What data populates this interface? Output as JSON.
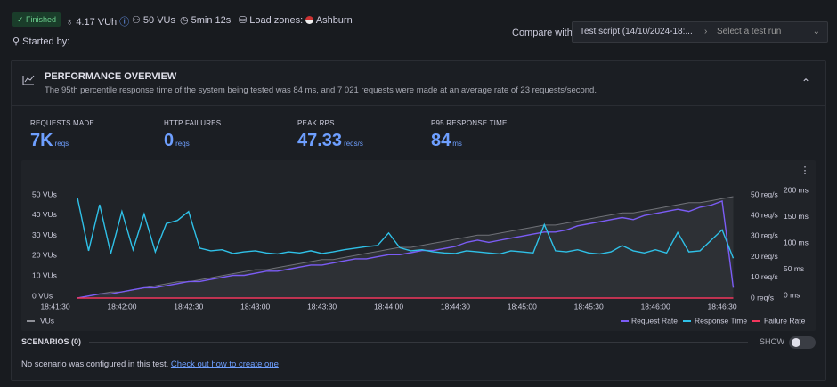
{
  "header": {
    "status": "Finished",
    "vuh": "4.17 VUh",
    "vus": "50 VUs",
    "duration": "5min 12s",
    "load_zones": "Load zones:",
    "zone": "Ashburn",
    "started_by": "Started by:",
    "compare_label": "Compare with",
    "compare_script": "Test script (14/10/2024-18:...",
    "compare_run": "Select a test run"
  },
  "overview": {
    "title": "PERFORMANCE OVERVIEW",
    "description": "The 95th percentile response time of the system being tested was 84 ms, and 7 021 requests were made at an average rate of 23 requests/second."
  },
  "metrics": [
    {
      "label": "REQUESTS MADE",
      "value": "7K",
      "unit": "reqs"
    },
    {
      "label": "HTTP FAILURES",
      "value": "0",
      "unit": "reqs"
    },
    {
      "label": "PEAK RPS",
      "value": "47.33",
      "unit": "reqs/s"
    },
    {
      "label": "P95 RESPONSE TIME",
      "value": "84",
      "unit": "ms"
    }
  ],
  "chart_data": {
    "type": "line",
    "x": [
      67300,
      67305,
      67310,
      67315,
      67320,
      67325,
      67330,
      67335,
      67340,
      67345,
      67350,
      67355,
      67360,
      67365,
      67370,
      67375,
      67380,
      67385,
      67390,
      67395,
      67400,
      67405,
      67410,
      67415,
      67420,
      67425,
      67430,
      67435,
      67440,
      67445,
      67450,
      67455,
      67460,
      67465,
      67470,
      67475,
      67480,
      67485,
      67490,
      67495,
      67500,
      67505,
      67510,
      67515,
      67520,
      67525,
      67530,
      67535,
      67540,
      67545,
      67550,
      67555,
      67560,
      67565,
      67570,
      67575,
      67580,
      67585,
      67590,
      67595
    ],
    "xlim": [
      67290,
      67600
    ],
    "xticks": [
      {
        "value": 67290,
        "label": "18:41:30"
      },
      {
        "value": 67320,
        "label": "18:42:00"
      },
      {
        "value": 67350,
        "label": "18:42:30"
      },
      {
        "value": 67380,
        "label": "18:43:00"
      },
      {
        "value": 67410,
        "label": "18:43:30"
      },
      {
        "value": 67440,
        "label": "18:44:00"
      },
      {
        "value": 67470,
        "label": "18:44:30"
      },
      {
        "value": 67500,
        "label": "18:45:00"
      },
      {
        "value": 67530,
        "label": "18:45:30"
      },
      {
        "value": 67560,
        "label": "18:46:00"
      },
      {
        "value": 67590,
        "label": "18:46:30"
      }
    ],
    "ylim": [
      0,
      50
    ],
    "yticks": [
      {
        "value": 0,
        "label": "0 VUs"
      },
      {
        "value": 10,
        "label": "10 VUs"
      },
      {
        "value": 20,
        "label": "20 VUs"
      },
      {
        "value": 30,
        "label": "30 VUs"
      },
      {
        "value": 40,
        "label": "40 VUs"
      },
      {
        "value": 50,
        "label": "50 VUs"
      }
    ],
    "y2lim": [
      0,
      50
    ],
    "y2ticks": [
      {
        "value": 0,
        "label": "0 req/s"
      },
      {
        "value": 10,
        "label": "10 req/s"
      },
      {
        "value": 20,
        "label": "20 req/s"
      },
      {
        "value": 30,
        "label": "30 req/s"
      },
      {
        "value": 40,
        "label": "40 req/s"
      },
      {
        "value": 50,
        "label": "50 req/s"
      }
    ],
    "y3lim": [
      0,
      200
    ],
    "y3ticks": [
      {
        "value": 0,
        "label": "0 ms"
      },
      {
        "value": 50,
        "label": "50 ms"
      },
      {
        "value": 100,
        "label": "100 ms"
      },
      {
        "value": 150,
        "label": "150 ms"
      },
      {
        "value": 200,
        "label": "200 ms"
      }
    ],
    "series": [
      {
        "name": "VUs",
        "color": "#8e9097",
        "values": [
          0,
          1,
          2,
          3,
          3,
          4,
          5,
          6,
          7,
          8,
          8,
          9,
          10,
          11,
          12,
          13,
          14,
          14,
          15,
          16,
          17,
          18,
          19,
          19,
          20,
          21,
          22,
          23,
          24,
          25,
          25,
          26,
          27,
          28,
          29,
          30,
          31,
          31,
          32,
          33,
          34,
          35,
          36,
          36,
          37,
          38,
          39,
          40,
          41,
          42,
          42,
          43,
          44,
          45,
          46,
          47,
          47,
          48,
          49,
          50
        ]
      },
      {
        "name": "Request Rate",
        "color": "#7b5cf5",
        "axis": "y2",
        "values": [
          0,
          1,
          2,
          2,
          3,
          4,
          5,
          5,
          6,
          7,
          8,
          8,
          9,
          10,
          11,
          11,
          12,
          13,
          13,
          14,
          15,
          16,
          16,
          17,
          18,
          19,
          19,
          20,
          21,
          21,
          22,
          23,
          23,
          24,
          25,
          27,
          28,
          27,
          28,
          29,
          30,
          31,
          32,
          32,
          33,
          35,
          36,
          37,
          38,
          39,
          38,
          40,
          41,
          42,
          43,
          42,
          44,
          45,
          47,
          5
        ]
      },
      {
        "name": "Response Time",
        "color": "#2fc1e8",
        "axis": "y3",
        "values": [
          191,
          90,
          178,
          85,
          165,
          92,
          160,
          88,
          142,
          148,
          165,
          95,
          90,
          92,
          85,
          88,
          90,
          86,
          84,
          88,
          86,
          90,
          85,
          88,
          92,
          95,
          98,
          100,
          124,
          96,
          90,
          92,
          88,
          86,
          85,
          90,
          88,
          86,
          84,
          90,
          88,
          86,
          140,
          90,
          88,
          92,
          86,
          84,
          88,
          100,
          90,
          86,
          92,
          86,
          125,
          88,
          90,
          110,
          130,
          76
        ]
      },
      {
        "name": "Failure Rate",
        "color": "#f2365c",
        "axis": "y2",
        "values": [
          0,
          0,
          0,
          0,
          0,
          0,
          0,
          0,
          0,
          0,
          0,
          0,
          0,
          0,
          0,
          0,
          0,
          0,
          0,
          0,
          0,
          0,
          0,
          0,
          0,
          0,
          0,
          0,
          0,
          0,
          0,
          0,
          0,
          0,
          0,
          0,
          0,
          0,
          0,
          0,
          0,
          0,
          0,
          0,
          0,
          0,
          0,
          0,
          0,
          0,
          0,
          0,
          0,
          0,
          0,
          0,
          0,
          0,
          0,
          0
        ]
      }
    ]
  },
  "scenarios": {
    "title": "SCENARIOS (0)",
    "toggle": "SHOW",
    "message": "No scenario was configured in this test.",
    "link": "Check out how to create one"
  }
}
